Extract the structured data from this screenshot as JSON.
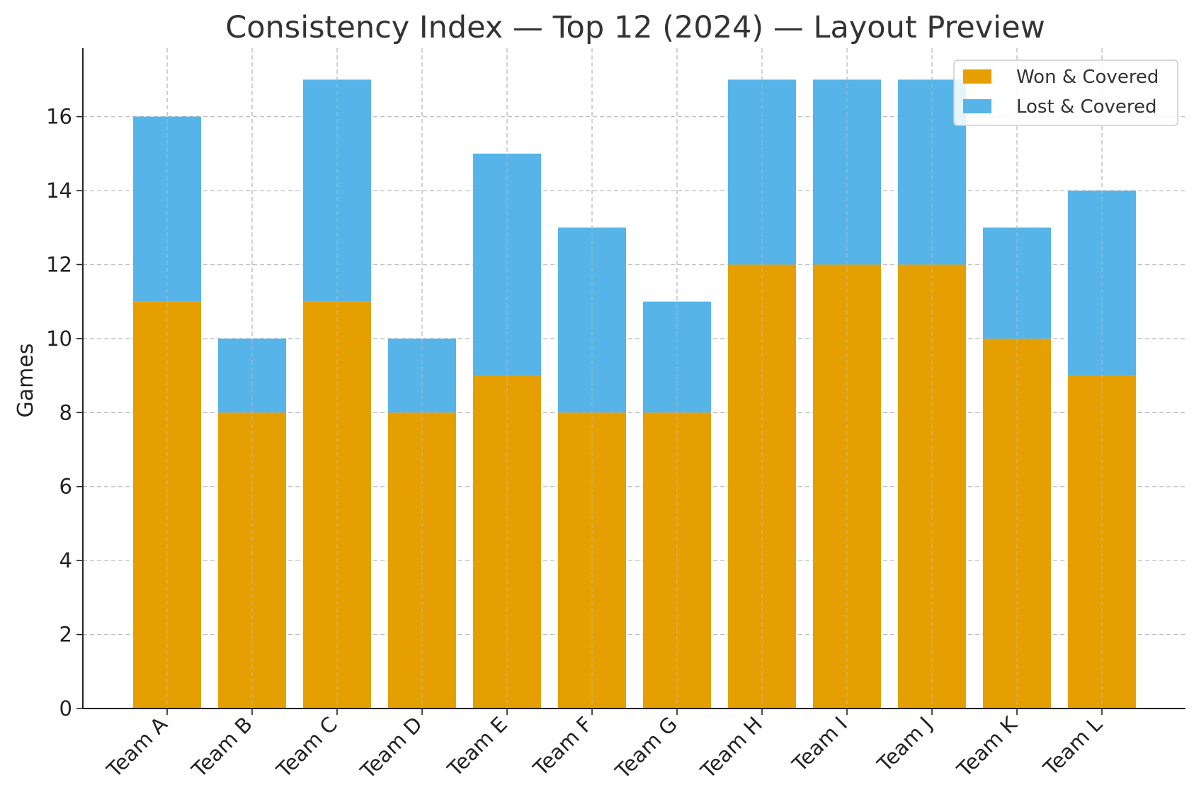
{
  "chart_data": {
    "type": "bar",
    "stacked": true,
    "title": "Consistency Index — Top 12 (2024) — Layout Preview",
    "xlabel": "",
    "ylabel": "Games",
    "categories": [
      "Team A",
      "Team B",
      "Team C",
      "Team D",
      "Team E",
      "Team F",
      "Team G",
      "Team H",
      "Team I",
      "Team J",
      "Team K",
      "Team L"
    ],
    "series": [
      {
        "name": "Won & Covered",
        "color": "#E69F00",
        "values": [
          11,
          8,
          11,
          8,
          9,
          8,
          8,
          12,
          12,
          12,
          10,
          9
        ]
      },
      {
        "name": "Lost & Covered",
        "color": "#56B4E9",
        "values": [
          5,
          2,
          6,
          2,
          6,
          5,
          3,
          5,
          5,
          5,
          3,
          5
        ]
      }
    ],
    "ylim": [
      0,
      17.85
    ],
    "yticks": [
      0,
      2,
      4,
      6,
      8,
      10,
      12,
      14,
      16
    ],
    "grid": true,
    "legend_position": "top-right"
  }
}
